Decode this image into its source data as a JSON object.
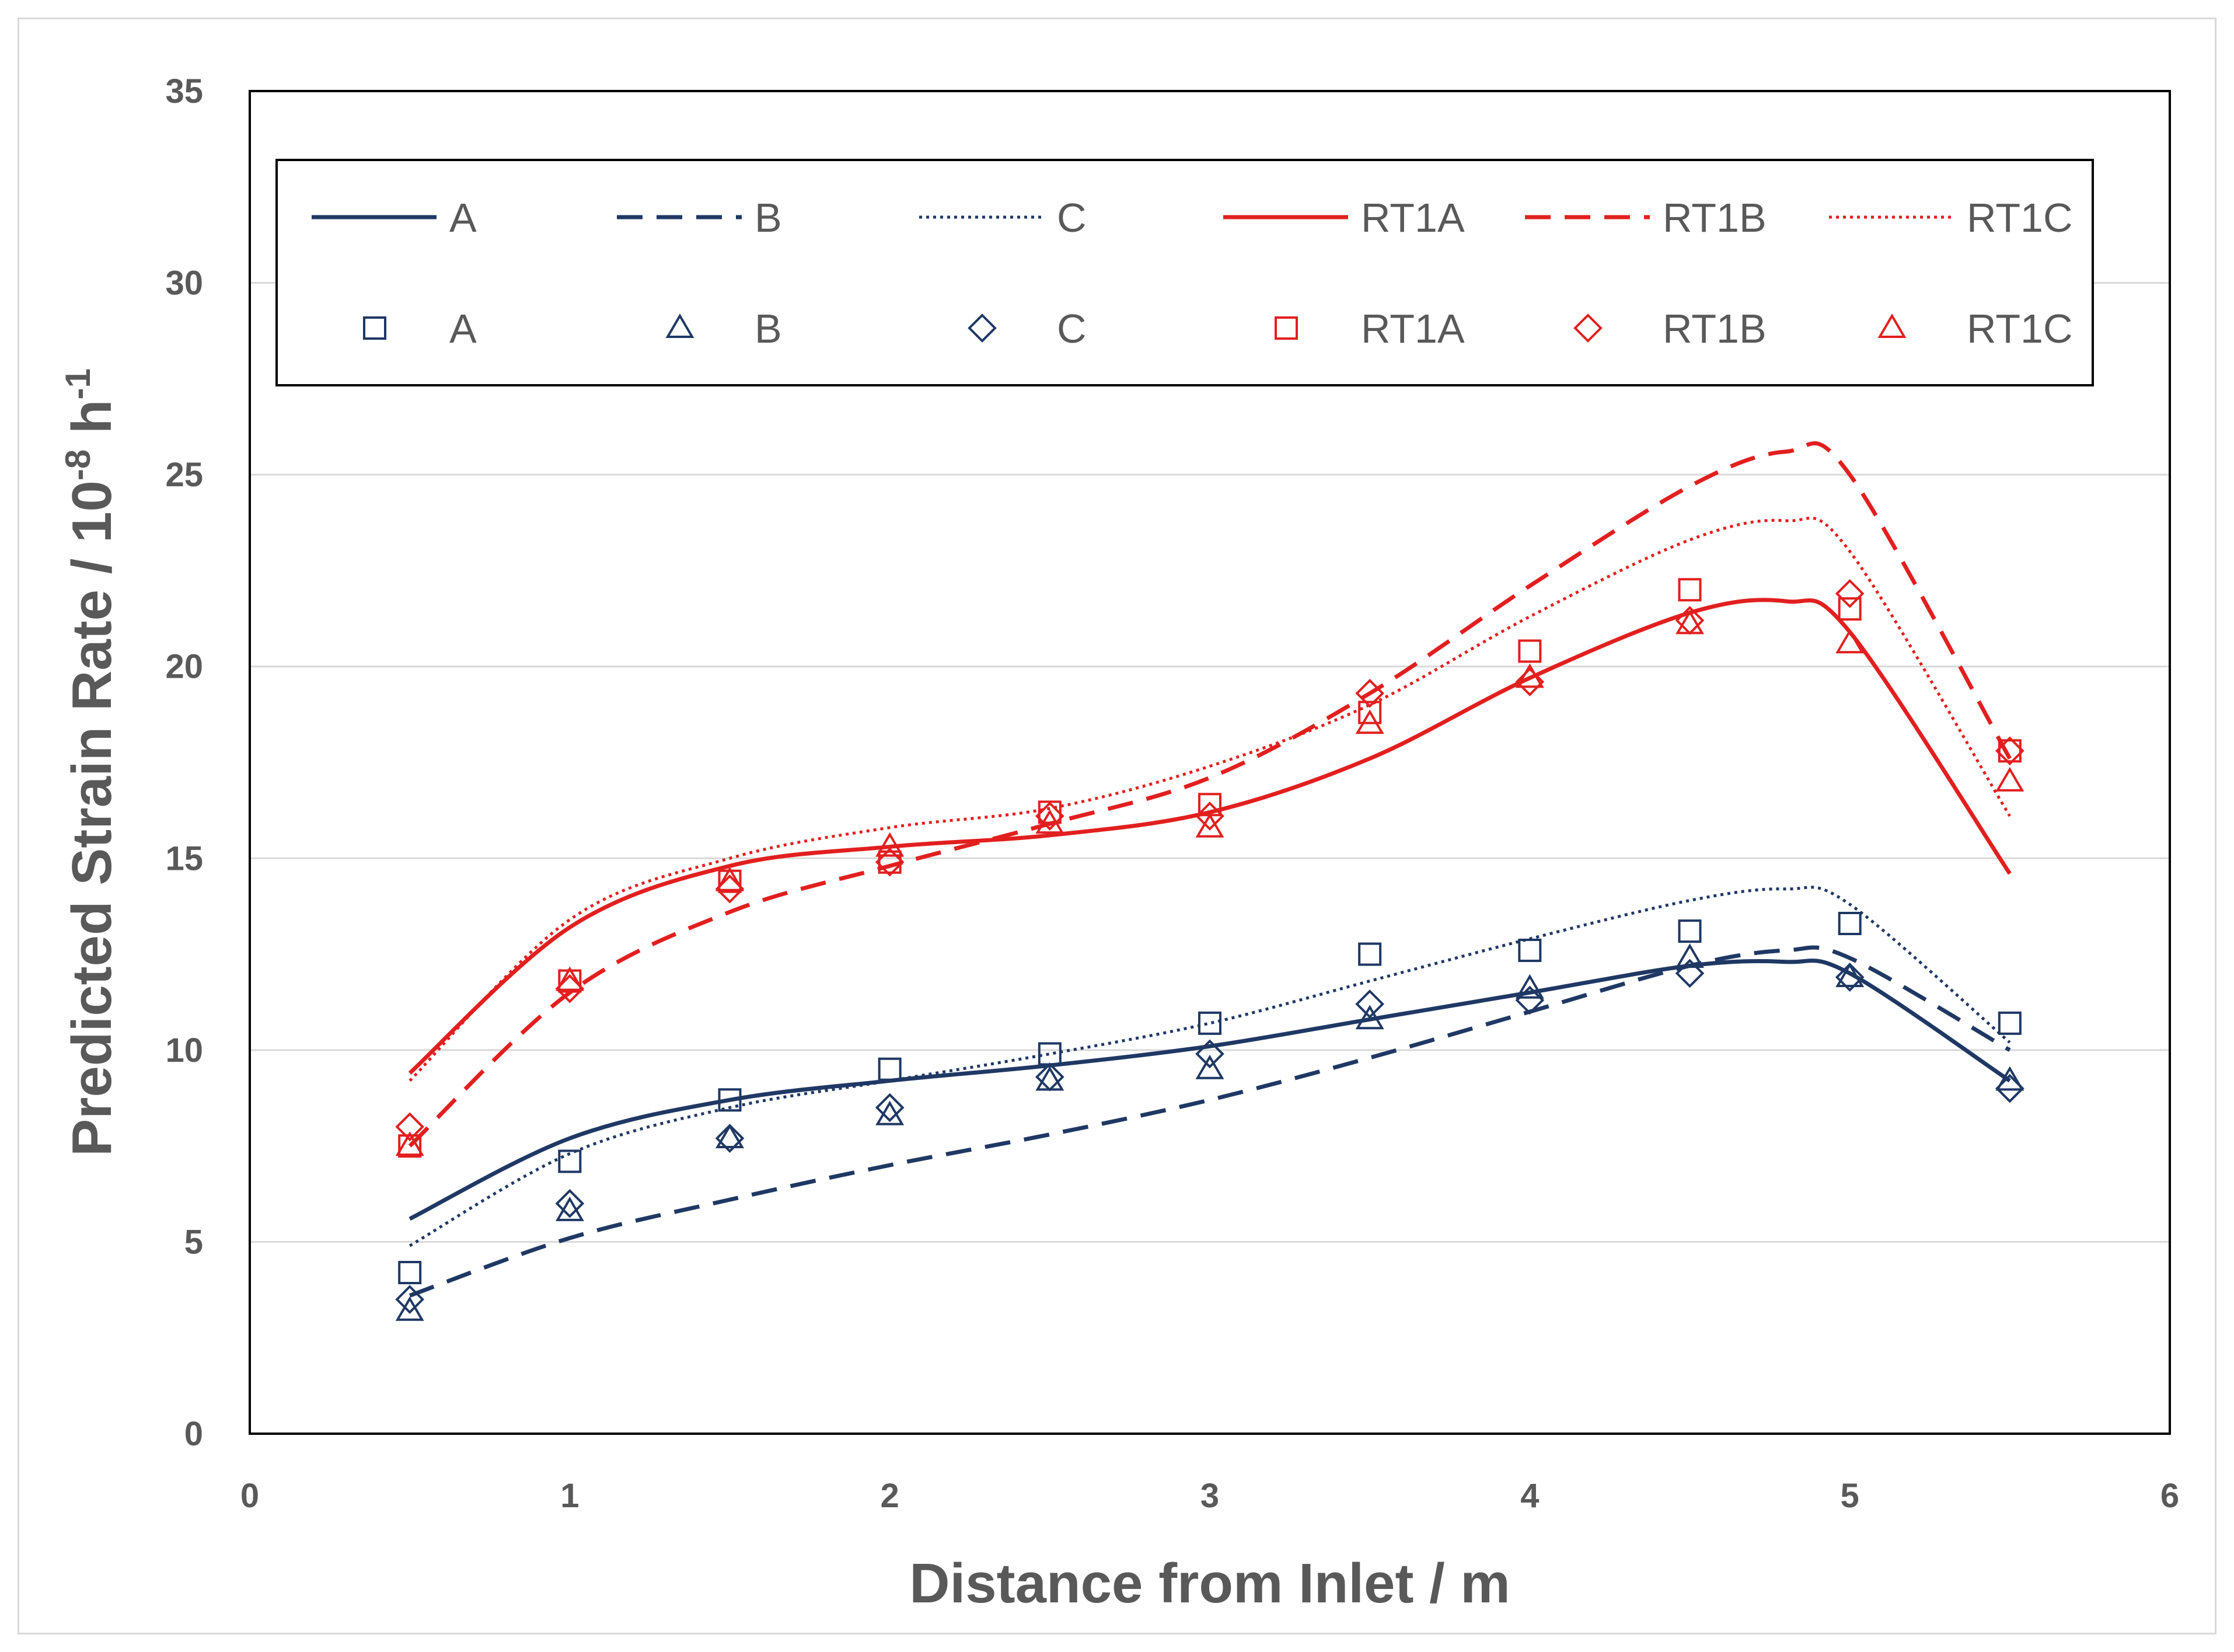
{
  "chart_data": {
    "type": "line",
    "title": "",
    "xlabel": "Distance from Inlet / m",
    "ylabel": {
      "main": "Predicted Strain Rate / 10",
      "exp1": "-8",
      "unit": " h",
      "exp2": "-1"
    },
    "xlim": [
      0,
      6
    ],
    "ylim": [
      0,
      35
    ],
    "xticks": [
      0,
      1,
      2,
      3,
      4,
      5,
      6
    ],
    "yticks": [
      0,
      5,
      10,
      15,
      20,
      25,
      30,
      35
    ],
    "grid": "horizontal",
    "legend_position": "top",
    "lines": [
      {
        "name": "A",
        "color": "#1f3864",
        "dash": "solid",
        "x": [
          0.5,
          1.0,
          1.5,
          2.0,
          2.5,
          3.0,
          3.5,
          4.0,
          4.5,
          4.8,
          5.0,
          5.5
        ],
        "y": [
          5.6,
          7.7,
          8.7,
          9.2,
          9.6,
          10.1,
          10.8,
          11.5,
          12.2,
          12.3,
          12.0,
          9.2
        ]
      },
      {
        "name": "B",
        "color": "#1f3864",
        "dash": "dashed",
        "x": [
          0.5,
          1.0,
          1.5,
          2.0,
          2.5,
          3.0,
          3.5,
          4.0,
          4.5,
          4.8,
          5.0,
          5.5
        ],
        "y": [
          3.6,
          5.1,
          6.1,
          7.0,
          7.8,
          8.7,
          9.8,
          11.0,
          12.2,
          12.6,
          12.4,
          10.0
        ]
      },
      {
        "name": "C",
        "color": "#1f3864",
        "dash": "dotted",
        "x": [
          0.5,
          1.0,
          1.5,
          2.0,
          2.5,
          3.0,
          3.5,
          4.0,
          4.5,
          4.8,
          5.0,
          5.5
        ],
        "y": [
          4.9,
          7.3,
          8.5,
          9.2,
          9.9,
          10.7,
          11.8,
          12.9,
          13.9,
          14.2,
          13.8,
          10.2
        ]
      },
      {
        "name": "RT1A",
        "color": "#e21f1f",
        "dash": "solid",
        "x": [
          0.5,
          1.0,
          1.5,
          2.0,
          2.5,
          3.0,
          3.5,
          4.0,
          4.5,
          4.8,
          5.0,
          5.5
        ],
        "y": [
          9.4,
          13.2,
          14.8,
          15.3,
          15.6,
          16.2,
          17.6,
          19.7,
          21.4,
          21.7,
          20.9,
          14.6
        ]
      },
      {
        "name": "RT1B",
        "color": "#e21f1f",
        "dash": "dashed",
        "x": [
          0.5,
          1.0,
          1.5,
          2.0,
          2.5,
          3.0,
          3.5,
          4.0,
          4.5,
          4.8,
          5.0,
          5.5
        ],
        "y": [
          7.5,
          11.5,
          13.6,
          14.8,
          15.9,
          17.1,
          19.3,
          22.1,
          24.7,
          25.6,
          25.0,
          17.6
        ]
      },
      {
        "name": "RT1C",
        "color": "#e21f1f",
        "dash": "dotted",
        "x": [
          0.5,
          1.0,
          1.5,
          2.0,
          2.5,
          3.0,
          3.5,
          4.0,
          4.5,
          4.8,
          5.0,
          5.5
        ],
        "y": [
          9.2,
          13.4,
          15.0,
          15.8,
          16.3,
          17.4,
          19.0,
          21.3,
          23.3,
          23.8,
          23.0,
          16.1
        ]
      }
    ],
    "points": [
      {
        "name": "A",
        "color": "#1f3864",
        "marker": "square",
        "x": [
          0.5,
          1.0,
          1.5,
          2.0,
          2.5,
          3.0,
          3.5,
          4.0,
          4.5,
          5.0,
          5.5
        ],
        "y": [
          4.2,
          7.1,
          8.7,
          9.5,
          9.9,
          10.7,
          12.5,
          12.6,
          13.1,
          13.3,
          10.7
        ]
      },
      {
        "name": "B",
        "color": "#1f3864",
        "marker": "triangle",
        "x": [
          0.5,
          1.0,
          1.5,
          2.0,
          2.5,
          3.0,
          3.5,
          4.0,
          4.5,
          5.0,
          5.5
        ],
        "y": [
          3.2,
          5.8,
          7.7,
          8.3,
          9.2,
          9.5,
          10.8,
          11.6,
          12.4,
          11.9,
          9.2
        ]
      },
      {
        "name": "C",
        "color": "#1f3864",
        "marker": "diamond",
        "x": [
          0.5,
          1.0,
          1.5,
          2.0,
          2.5,
          3.0,
          3.5,
          4.0,
          4.5,
          5.0,
          5.5
        ],
        "y": [
          3.5,
          6.0,
          7.7,
          8.5,
          9.3,
          9.9,
          11.2,
          11.3,
          12.0,
          11.9,
          9.0
        ]
      },
      {
        "name": "RT1A",
        "color": "#e21f1f",
        "marker": "square",
        "x": [
          0.5,
          1.0,
          1.5,
          2.0,
          2.5,
          3.0,
          3.5,
          4.0,
          4.5,
          5.0,
          5.5
        ],
        "y": [
          7.5,
          11.8,
          14.4,
          14.9,
          16.2,
          16.4,
          18.8,
          20.4,
          22.0,
          21.5,
          17.8
        ]
      },
      {
        "name": "RT1B",
        "color": "#e21f1f",
        "marker": "diamond",
        "x": [
          0.5,
          1.0,
          1.5,
          2.0,
          2.5,
          3.0,
          3.5,
          4.0,
          4.5,
          5.0,
          5.5
        ],
        "y": [
          8.0,
          11.6,
          14.2,
          14.9,
          16.1,
          16.1,
          19.3,
          19.6,
          21.2,
          21.9,
          17.8
        ]
      },
      {
        "name": "RT1C",
        "color": "#e21f1f",
        "marker": "triangle",
        "x": [
          0.5,
          1.0,
          1.5,
          2.0,
          2.5,
          3.0,
          3.5,
          4.0,
          4.5,
          5.0,
          5.5
        ],
        "y": [
          7.5,
          11.8,
          14.4,
          15.3,
          15.9,
          15.8,
          18.5,
          19.7,
          21.1,
          20.6,
          17.0
        ]
      }
    ]
  }
}
